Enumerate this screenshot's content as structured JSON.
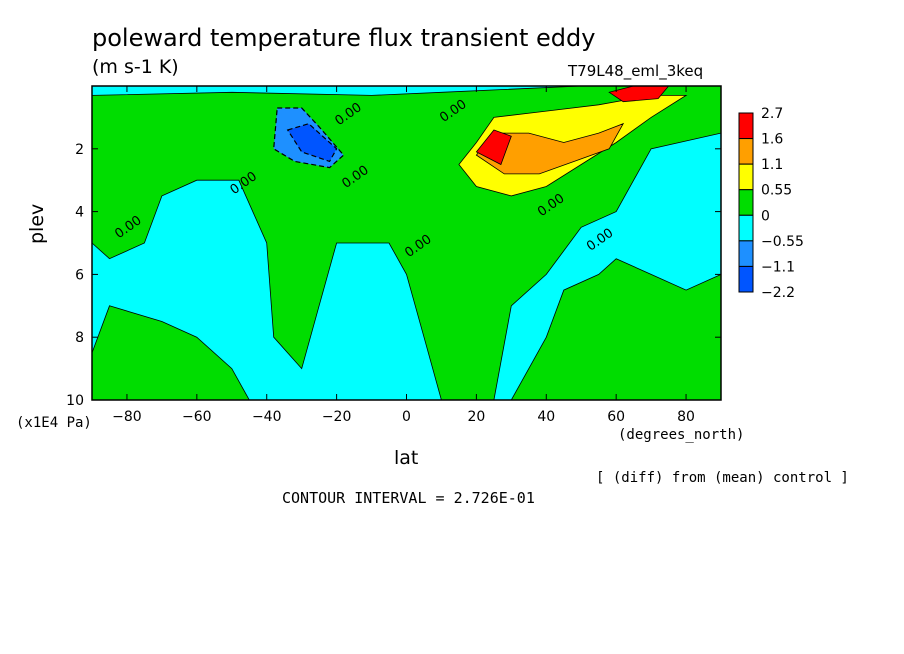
{
  "header": {
    "title": "poleward temperature flux transient eddy",
    "units": "(m s-1 K)",
    "run_name": "T79L48_eml_3keq"
  },
  "footer": {
    "diff_note": "[ (diff) from (mean) control ]",
    "contour_interval": "CONTOUR INTERVAL = 2.726E-01"
  },
  "chart_data": {
    "type": "heatmap",
    "title": "poleward temperature flux transient eddy",
    "xlabel": "lat",
    "x_units": "(degrees_north)",
    "ylabel": "plev",
    "y_units": "(x1E4 Pa)",
    "xlim": [
      -90,
      90
    ],
    "ylim": [
      10,
      0
    ],
    "x_ticks": [
      -80,
      -60,
      -40,
      -20,
      0,
      20,
      40,
      60,
      80
    ],
    "y_ticks": [
      2,
      4,
      6,
      8,
      10
    ],
    "contour_interval": 0.2726,
    "colorbar": {
      "labels": [
        "2.7",
        "1.6",
        "1.1",
        "0.55",
        "0",
        "-0.55",
        "-1.1",
        "-2.2"
      ],
      "levels": [
        2.7,
        1.6,
        1.1,
        0.55,
        0,
        -0.55,
        -1.1,
        -2.2
      ],
      "colors": [
        "#0055ff",
        "#1e90ff",
        "#00ffff",
        "#00dd00",
        "#ffff00",
        "#ff9f00",
        "#ff0000"
      ]
    },
    "contour_labels": [
      {
        "text": "0.00",
        "x": -79,
        "y": 4.6
      },
      {
        "text": "0.00",
        "x": -46,
        "y": 3.2
      },
      {
        "text": "0.00",
        "x": -16,
        "y": 1.0
      },
      {
        "text": "0.00",
        "x": -14,
        "y": 3.0
      },
      {
        "text": "0.00",
        "x": 4,
        "y": 5.2
      },
      {
        "text": "0.00",
        "x": 14,
        "y": 0.9
      },
      {
        "text": "0.00",
        "x": 42,
        "y": 3.9
      },
      {
        "text": "0.00",
        "x": 56,
        "y": 5.0
      }
    ],
    "regions": [
      {
        "value": 0.3,
        "points": [
          [
            -90,
            0.3
          ],
          [
            -50,
            0.2
          ],
          [
            -10,
            0.3
          ],
          [
            10,
            0.2
          ],
          [
            50,
            0
          ],
          [
            90,
            0
          ],
          [
            90,
            1.5
          ],
          [
            70,
            2
          ],
          [
            60,
            4
          ],
          [
            50,
            4.5
          ],
          [
            40,
            6
          ],
          [
            30,
            7
          ],
          [
            25,
            10
          ],
          [
            10,
            10
          ],
          [
            5,
            8
          ],
          [
            0,
            6
          ],
          [
            -5,
            5
          ],
          [
            -20,
            5
          ],
          [
            -25,
            7
          ],
          [
            -30,
            9
          ],
          [
            -38,
            8
          ],
          [
            -40,
            5
          ],
          [
            -48,
            3
          ],
          [
            -60,
            3
          ],
          [
            -70,
            3.5
          ],
          [
            -75,
            5
          ],
          [
            -85,
            5.5
          ],
          [
            -90,
            5
          ]
        ]
      },
      {
        "value": 0.3,
        "points": [
          [
            -85,
            7
          ],
          [
            -70,
            7.5
          ],
          [
            -60,
            8
          ],
          [
            -50,
            9
          ],
          [
            -45,
            10
          ],
          [
            -90,
            10
          ],
          [
            -90,
            8.5
          ]
        ]
      },
      {
        "value": 0.3,
        "points": [
          [
            30,
            10
          ],
          [
            40,
            8
          ],
          [
            45,
            6.5
          ],
          [
            55,
            6
          ],
          [
            60,
            5.5
          ],
          [
            70,
            6
          ],
          [
            80,
            6.5
          ],
          [
            90,
            6
          ],
          [
            90,
            10
          ]
        ]
      },
      {
        "value": 0.8,
        "points": [
          [
            15,
            2.5
          ],
          [
            20,
            1.8
          ],
          [
            25,
            1
          ],
          [
            40,
            0.8
          ],
          [
            55,
            0.6
          ],
          [
            70,
            0.3
          ],
          [
            80,
            0.3
          ],
          [
            70,
            1
          ],
          [
            60,
            1.8
          ],
          [
            50,
            2.5
          ],
          [
            40,
            3.2
          ],
          [
            30,
            3.5
          ],
          [
            20,
            3.2
          ]
        ]
      },
      {
        "value": 1.3,
        "points": [
          [
            20,
            2.2
          ],
          [
            25,
            1.5
          ],
          [
            35,
            1.5
          ],
          [
            45,
            1.8
          ],
          [
            55,
            1.5
          ],
          [
            62,
            1.2
          ],
          [
            58,
            2
          ],
          [
            48,
            2.4
          ],
          [
            38,
            2.8
          ],
          [
            28,
            2.8
          ]
        ]
      },
      {
        "value": 2.0,
        "points": [
          [
            20,
            2.1
          ],
          [
            25,
            1.4
          ],
          [
            30,
            1.6
          ],
          [
            27,
            2.5
          ]
        ]
      },
      {
        "value": 2.0,
        "points": [
          [
            58,
            0.2
          ],
          [
            65,
            0
          ],
          [
            75,
            0
          ],
          [
            72,
            0.4
          ],
          [
            62,
            0.5
          ]
        ]
      },
      {
        "value": -0.7,
        "points": [
          [
            -37,
            0.7
          ],
          [
            -30,
            0.7
          ],
          [
            -25,
            1.3
          ],
          [
            -18,
            2.2
          ],
          [
            -22,
            2.6
          ],
          [
            -32,
            2.4
          ],
          [
            -38,
            2
          ]
        ]
      },
      {
        "value": -1.4,
        "points": [
          [
            -34,
            1.4
          ],
          [
            -28,
            1.2
          ],
          [
            -20,
            2
          ],
          [
            -22,
            2.4
          ],
          [
            -30,
            2.1
          ]
        ]
      }
    ]
  }
}
